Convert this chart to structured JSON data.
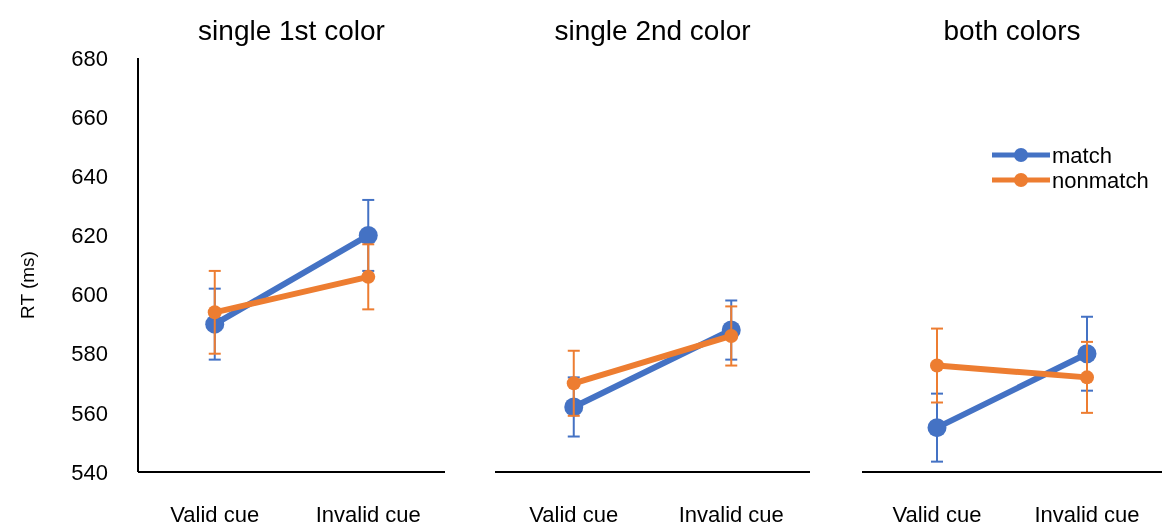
{
  "chart_data": [
    {
      "type": "line",
      "title": "single 1st color",
      "ylabel": "RT (ms)",
      "categories": [
        "Valid cue",
        "Invalid cue"
      ],
      "ylim": [
        540,
        680
      ],
      "yticks": [
        540,
        560,
        580,
        600,
        620,
        640,
        660,
        680
      ],
      "grid": false,
      "legend": false,
      "marker": "circle",
      "series": [
        {
          "color": "#4472c4",
          "values": [
            590,
            620
          ],
          "errors": [
            12,
            12
          ]
        },
        {
          "color": "#ed7d31",
          "values": [
            594,
            606
          ],
          "errors": [
            14,
            11
          ]
        }
      ]
    },
    {
      "type": "line",
      "title": "single 2nd color",
      "categories": [
        "Valid cue",
        "Invalid cue"
      ],
      "ylim": [
        540,
        680
      ],
      "tick_labels": "x",
      "grid": false,
      "legend": false,
      "marker": "circle",
      "series": [
        {
          "color": "#4472c4",
          "values": [
            562,
            588
          ],
          "errors": [
            10,
            10
          ]
        },
        {
          "color": "#ed7d31",
          "values": [
            570,
            586
          ],
          "errors": [
            11,
            10
          ]
        }
      ]
    },
    {
      "type": "line",
      "title": "both colors",
      "categories": [
        "Valid cue",
        "Invalid cue"
      ],
      "ylim": [
        540,
        680
      ],
      "tick_labels": "x",
      "grid": false,
      "legend": "top right",
      "marker": "circle",
      "series": [
        {
          "name": "match",
          "color": "#4472c4",
          "values": [
            555,
            580
          ],
          "errors": [
            11.5,
            12.5
          ]
        },
        {
          "name": "nonmatch",
          "color": "#ed7d31",
          "values": [
            576,
            572
          ],
          "errors": [
            12.5,
            12
          ]
        }
      ]
    }
  ]
}
